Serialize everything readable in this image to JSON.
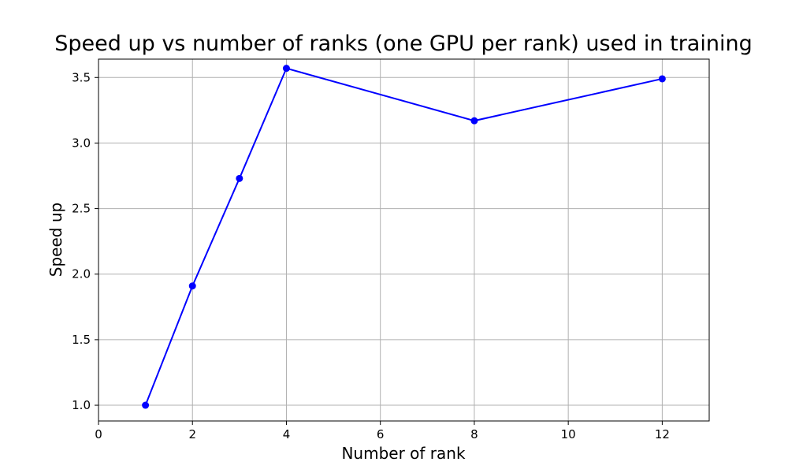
{
  "chart_data": {
    "type": "line",
    "title": "Speed up vs number of ranks (one GPU per rank) used in training",
    "xlabel": "Number of rank",
    "ylabel": "Speed up",
    "x": [
      1,
      2,
      3,
      4,
      8,
      12
    ],
    "series": [
      {
        "values": [
          1.0,
          1.91,
          2.73,
          3.57,
          3.17,
          3.49
        ],
        "color": "#0000ff",
        "marker": "circle"
      }
    ],
    "xlim": [
      0,
      13
    ],
    "ylim": [
      0.88,
      3.64
    ],
    "xticks": [
      0,
      2,
      4,
      6,
      8,
      10,
      12
    ],
    "yticks": [
      1.0,
      1.5,
      2.0,
      2.5,
      3.0,
      3.5
    ],
    "xtick_labels": [
      "0",
      "2",
      "4",
      "6",
      "8",
      "10",
      "12"
    ],
    "ytick_labels": [
      "1.0",
      "1.5",
      "2.0",
      "2.5",
      "3.0",
      "3.5"
    ],
    "grid": true,
    "legend": "none"
  }
}
